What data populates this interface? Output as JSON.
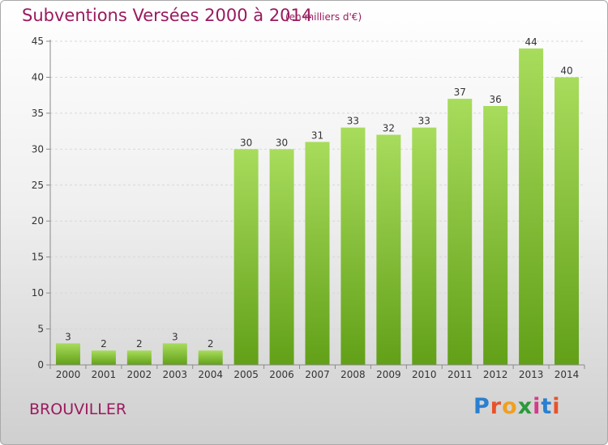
{
  "header": {
    "title": "Subventions Versées 2000 à 2014",
    "subtitle": "(en milliers d'€)"
  },
  "footer": {
    "commune": "BROUVILLER",
    "logo": {
      "text": "Proxiti",
      "letter_colors": [
        "#2a7fd0",
        "#e8522a",
        "#f0a020",
        "#2a9a3a",
        "#d63a8a",
        "#2a7fd0",
        "#e8522a"
      ]
    }
  },
  "colors": {
    "bar_light": "#a8dc5c",
    "bar_dark": "#62a018",
    "axis": "#8a8a8a",
    "grid": "#d8d8d8",
    "title": "#9b1a5e"
  },
  "chart_data": {
    "type": "bar",
    "title": "Subventions Versées 2000 à 2014",
    "subtitle": "(en milliers d'€)",
    "xlabel": "",
    "ylabel": "",
    "categories": [
      "2000",
      "2001",
      "2002",
      "2003",
      "2004",
      "2005",
      "2006",
      "2007",
      "2008",
      "2009",
      "2010",
      "2011",
      "2012",
      "2013",
      "2014"
    ],
    "values": [
      3,
      2,
      2,
      3,
      2,
      30,
      30,
      31,
      33,
      32,
      33,
      37,
      36,
      44,
      40
    ],
    "ylim": [
      0,
      45
    ],
    "yticks": [
      0,
      5,
      10,
      15,
      20,
      25,
      30,
      35,
      40,
      45
    ],
    "grid": true,
    "data_labels": true
  }
}
